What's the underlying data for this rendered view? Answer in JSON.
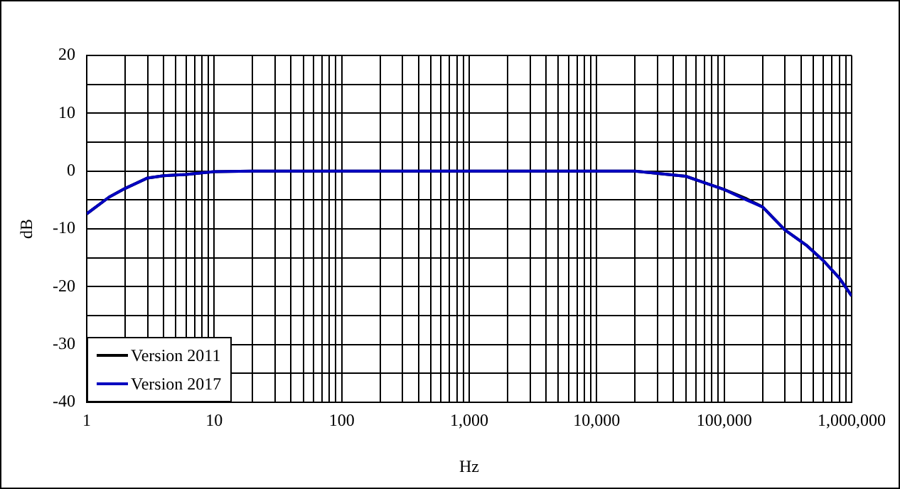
{
  "chart_data": {
    "type": "line",
    "xlabel": "Hz",
    "ylabel": "dB",
    "log": "x",
    "grid": true,
    "legend": "bottom left",
    "marker": "none",
    "line_style": "solid",
    "x": [
      1,
      1.5,
      2,
      3,
      4,
      6,
      10,
      20,
      100,
      1000,
      10000,
      20000,
      50000,
      100000,
      150000,
      200000,
      300000,
      440000,
      600000,
      800000,
      1000000
    ],
    "xlim": [
      1,
      1000000
    ],
    "xticks": [
      {
        "value": 1,
        "label": "1"
      },
      {
        "value": 2,
        "label": null
      },
      {
        "value": 3,
        "label": null
      },
      {
        "value": 4,
        "label": null
      },
      {
        "value": 5,
        "label": null
      },
      {
        "value": 6,
        "label": null
      },
      {
        "value": 7,
        "label": null
      },
      {
        "value": 8,
        "label": null
      },
      {
        "value": 9,
        "label": null
      },
      {
        "value": 10,
        "label": "10"
      },
      {
        "value": 20,
        "label": null
      },
      {
        "value": 30,
        "label": null
      },
      {
        "value": 40,
        "label": null
      },
      {
        "value": 50,
        "label": null
      },
      {
        "value": 60,
        "label": null
      },
      {
        "value": 70,
        "label": null
      },
      {
        "value": 80,
        "label": null
      },
      {
        "value": 90,
        "label": null
      },
      {
        "value": 100,
        "label": "100"
      },
      {
        "value": 200,
        "label": null
      },
      {
        "value": 300,
        "label": null
      },
      {
        "value": 400,
        "label": null
      },
      {
        "value": 500,
        "label": null
      },
      {
        "value": 600,
        "label": null
      },
      {
        "value": 700,
        "label": null
      },
      {
        "value": 800,
        "label": null
      },
      {
        "value": 900,
        "label": null
      },
      {
        "value": 1000,
        "label": "1,000"
      },
      {
        "value": 2000,
        "label": null
      },
      {
        "value": 3000,
        "label": null
      },
      {
        "value": 4000,
        "label": null
      },
      {
        "value": 5000,
        "label": null
      },
      {
        "value": 6000,
        "label": null
      },
      {
        "value": 7000,
        "label": null
      },
      {
        "value": 8000,
        "label": null
      },
      {
        "value": 9000,
        "label": null
      },
      {
        "value": 10000,
        "label": "10,000"
      },
      {
        "value": 20000,
        "label": null
      },
      {
        "value": 30000,
        "label": null
      },
      {
        "value": 40000,
        "label": null
      },
      {
        "value": 50000,
        "label": null
      },
      {
        "value": 60000,
        "label": null
      },
      {
        "value": 70000,
        "label": null
      },
      {
        "value": 80000,
        "label": null
      },
      {
        "value": 90000,
        "label": null
      },
      {
        "value": 100000,
        "label": "100,000"
      },
      {
        "value": 200000,
        "label": null
      },
      {
        "value": 300000,
        "label": null
      },
      {
        "value": 400000,
        "label": null
      },
      {
        "value": 500000,
        "label": null
      },
      {
        "value": 600000,
        "label": null
      },
      {
        "value": 700000,
        "label": null
      },
      {
        "value": 800000,
        "label": null
      },
      {
        "value": 900000,
        "label": null
      },
      {
        "value": 1000000,
        "label": "1,000,000"
      }
    ],
    "ylim": [
      -40,
      20
    ],
    "yticks": [
      -40,
      {
        "value": -35,
        "label": null
      },
      -30,
      {
        "value": -25,
        "label": null
      },
      -20,
      {
        "value": -15,
        "label": null
      },
      -10,
      {
        "value": -5,
        "label": null
      },
      0,
      {
        "value": 5,
        "label": null
      },
      10,
      {
        "value": 15,
        "label": null
      },
      20
    ],
    "series": [
      {
        "name": "Version 2011",
        "color": "#000000",
        "values": [
          -7.4,
          -4.5,
          -3,
          -1.2,
          -0.8,
          -0.6,
          -0.1,
          0,
          0,
          0,
          0,
          0,
          -0.9,
          -3.2,
          -4.8,
          -6.2,
          -10.2,
          -12.8,
          -15.5,
          -18.5,
          -21.6
        ]
      },
      {
        "name": "Version 2017",
        "color": "#0000c0",
        "values": [
          -7.4,
          -4.5,
          -3,
          -1.2,
          -0.8,
          -0.6,
          -0.1,
          0,
          0,
          0,
          0,
          0,
          -0.9,
          -3.2,
          -5,
          -6.2,
          -10.2,
          -12.8,
          -15.5,
          -18.5,
          -21.6
        ]
      }
    ]
  }
}
